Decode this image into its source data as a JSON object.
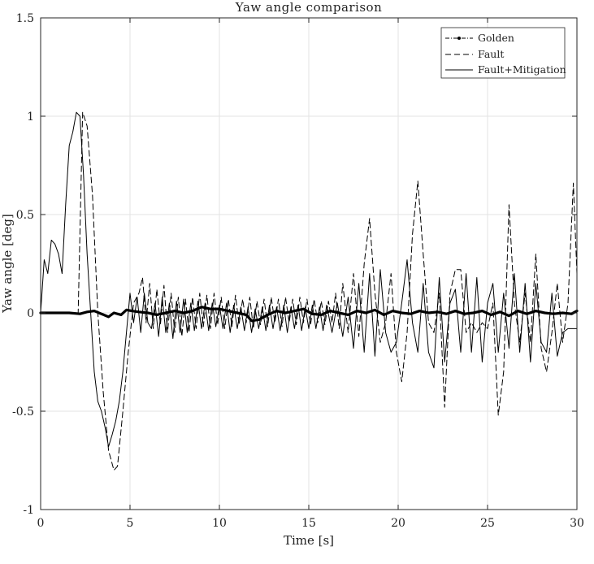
{
  "chart_data": {
    "type": "line",
    "title": "Yaw angle comparison",
    "xlabel": "Time [s]",
    "ylabel": "Yaw angle [deg]",
    "xlim": [
      0,
      30
    ],
    "ylim": [
      -1,
      1.5
    ],
    "xticks": [
      0,
      5,
      10,
      15,
      20,
      25,
      30
    ],
    "xtick_labels": [
      "0",
      "5",
      "10",
      "15",
      "20",
      "25",
      "30"
    ],
    "yticks": [
      -1,
      -0.5,
      0,
      0.5,
      1,
      1.5
    ],
    "ytick_labels": [
      "-1",
      "-0.5",
      "0",
      "0.5",
      "1",
      "1.5"
    ],
    "grid": true,
    "legend_position": "top-right",
    "series": [
      {
        "name": "Golden",
        "style": "dash-dot-marker",
        "color": "#000000",
        "x": [
          0,
          1,
          1.6,
          2.2,
          2.6,
          3.0,
          3.4,
          3.8,
          4.1,
          4.5,
          4.8,
          5.1,
          5.5,
          6.0,
          6.5,
          7.0,
          7.5,
          8.0,
          8.5,
          9.0,
          9.5,
          10.0,
          10.5,
          11.0,
          11.5,
          11.8,
          12.2,
          12.7,
          13.2,
          13.7,
          14.2,
          14.7,
          15.2,
          15.7,
          16.2,
          16.7,
          17.2,
          17.7,
          18.2,
          18.7,
          19.2,
          19.7,
          20.2,
          20.7,
          21.2,
          21.7,
          22.2,
          22.7,
          23.2,
          23.7,
          24.2,
          24.7,
          25.2,
          25.7,
          26.2,
          26.7,
          27.2,
          27.7,
          28.2,
          28.7,
          29.2,
          29.7,
          30.0
        ],
        "y": [
          0,
          0,
          0,
          -0.005,
          0.005,
          0.01,
          -0.005,
          -0.02,
          0.0,
          -0.01,
          0.015,
          0.01,
          0.005,
          0.0,
          -0.01,
          0.0,
          0.01,
          0.0,
          0.01,
          0.03,
          0.02,
          0.02,
          0.01,
          0.0,
          -0.01,
          -0.04,
          -0.035,
          -0.01,
          0.01,
          0.0,
          0.01,
          0.02,
          -0.005,
          -0.01,
          0.01,
          0.0,
          -0.01,
          0.01,
          0.0,
          0.015,
          -0.01,
          0.01,
          0.0,
          -0.005,
          0.01,
          0.0,
          0.005,
          -0.005,
          0.01,
          -0.005,
          0.0,
          0.01,
          -0.01,
          0.005,
          -0.015,
          0.01,
          -0.005,
          0.01,
          0.0,
          -0.005,
          0.0,
          -0.005,
          0.01
        ]
      },
      {
        "name": "Fault",
        "style": "dashed",
        "color": "#000000",
        "x": [
          0,
          0.3,
          0.6,
          0.9,
          1.2,
          1.5,
          1.8,
          2.1,
          2.35,
          2.6,
          2.9,
          3.2,
          3.5,
          3.8,
          4.1,
          4.3,
          4.6,
          4.9,
          5.2,
          5.5,
          5.7,
          5.9,
          6.1,
          6.3,
          6.5,
          6.7,
          6.9,
          7.1,
          7.3,
          7.5,
          7.7,
          7.9,
          8.1,
          8.3,
          8.5,
          8.7,
          8.9,
          9.1,
          9.3,
          9.5,
          9.7,
          9.9,
          10.1,
          10.3,
          10.5,
          10.7,
          10.9,
          11.1,
          11.3,
          11.5,
          11.7,
          11.9,
          12.1,
          12.3,
          12.5,
          12.7,
          12.9,
          13.1,
          13.3,
          13.5,
          13.7,
          13.9,
          14.1,
          14.3,
          14.5,
          14.7,
          14.9,
          15.1,
          15.3,
          15.5,
          15.7,
          15.9,
          16.1,
          16.3,
          16.5,
          16.7,
          16.9,
          17.2,
          17.5,
          17.8,
          18.1,
          18.4,
          18.7,
          19.0,
          19.3,
          19.6,
          19.9,
          20.2,
          20.5,
          20.8,
          21.1,
          21.4,
          21.7,
          22.0,
          22.3,
          22.6,
          22.9,
          23.2,
          23.5,
          23.8,
          24.1,
          24.4,
          24.7,
          25.0,
          25.3,
          25.6,
          25.9,
          26.2,
          26.5,
          26.8,
          27.1,
          27.4,
          27.7,
          28.0,
          28.3,
          28.6,
          28.9,
          29.2,
          29.5,
          29.8,
          30.0
        ],
        "y": [
          0,
          0,
          0,
          0,
          0,
          0,
          0,
          0.0,
          1.02,
          0.95,
          0.6,
          0.0,
          -0.4,
          -0.7,
          -0.8,
          -0.78,
          -0.5,
          -0.2,
          0.05,
          0.1,
          0.18,
          -0.05,
          0.15,
          -0.08,
          0.12,
          -0.06,
          0.14,
          -0.1,
          0.1,
          -0.1,
          0.08,
          -0.12,
          0.07,
          -0.1,
          0.08,
          -0.08,
          0.1,
          -0.07,
          0.09,
          -0.08,
          0.1,
          -0.06,
          0.08,
          -0.08,
          0.07,
          -0.07,
          0.09,
          -0.06,
          0.07,
          -0.05,
          0.08,
          -0.08,
          0.06,
          -0.06,
          0.07,
          -0.07,
          0.08,
          -0.05,
          0.07,
          -0.07,
          0.08,
          -0.05,
          0.07,
          -0.06,
          0.08,
          -0.05,
          0.07,
          -0.06,
          0.07,
          -0.05,
          0.06,
          -0.06,
          0.06,
          -0.05,
          0.1,
          -0.08,
          0.15,
          -0.1,
          0.2,
          -0.12,
          0.25,
          0.48,
          0.1,
          -0.15,
          -0.05,
          0.2,
          -0.2,
          -0.35,
          -0.1,
          0.4,
          0.67,
          0.3,
          -0.05,
          -0.1,
          0.1,
          -0.48,
          0.1,
          0.22,
          0.22,
          -0.1,
          -0.05,
          -0.1,
          -0.05,
          -0.08,
          0.05,
          -0.52,
          -0.3,
          0.55,
          0.05,
          -0.15,
          0.1,
          -0.15,
          0.3,
          -0.18,
          -0.3,
          -0.1,
          0.15,
          -0.15,
          0.05,
          0.66,
          0.2
        ]
      },
      {
        "name": "Fault+Mitigation",
        "style": "solid",
        "color": "#000000",
        "x": [
          0,
          0.2,
          0.4,
          0.6,
          0.8,
          1.0,
          1.2,
          1.4,
          1.6,
          1.8,
          2.0,
          2.2,
          2.4,
          2.6,
          2.8,
          3.0,
          3.2,
          3.4,
          3.6,
          3.8,
          4.0,
          4.2,
          4.4,
          4.6,
          4.8,
          5.0,
          5.2,
          5.4,
          5.6,
          5.8,
          6.0,
          6.2,
          6.4,
          6.6,
          6.8,
          7.0,
          7.2,
          7.4,
          7.6,
          7.8,
          8.0,
          8.2,
          8.4,
          8.6,
          8.8,
          9.0,
          9.2,
          9.4,
          9.6,
          9.8,
          10.0,
          10.2,
          10.4,
          10.6,
          10.8,
          11.0,
          11.2,
          11.4,
          11.6,
          11.8,
          12.0,
          12.2,
          12.4,
          12.6,
          12.8,
          13.0,
          13.2,
          13.4,
          13.6,
          13.8,
          14.0,
          14.2,
          14.4,
          14.6,
          14.8,
          15.0,
          15.2,
          15.4,
          15.6,
          15.8,
          16.0,
          16.3,
          16.6,
          16.9,
          17.2,
          17.5,
          17.8,
          18.1,
          18.4,
          18.7,
          19.0,
          19.3,
          19.6,
          19.9,
          20.2,
          20.5,
          20.8,
          21.1,
          21.4,
          21.7,
          22.0,
          22.3,
          22.6,
          22.9,
          23.2,
          23.5,
          23.8,
          24.1,
          24.4,
          24.7,
          25.0,
          25.3,
          25.6,
          25.9,
          26.2,
          26.5,
          26.8,
          27.1,
          27.4,
          27.7,
          28.0,
          28.3,
          28.6,
          28.9,
          29.2,
          29.5,
          29.8,
          30.0
        ],
        "y": [
          0,
          0.27,
          0.2,
          0.37,
          0.35,
          0.3,
          0.2,
          0.55,
          0.85,
          0.92,
          1.02,
          1.0,
          0.7,
          0.3,
          0.0,
          -0.3,
          -0.45,
          -0.5,
          -0.58,
          -0.68,
          -0.62,
          -0.55,
          -0.45,
          -0.3,
          -0.1,
          0.1,
          -0.05,
          0.08,
          -0.1,
          0.1,
          -0.05,
          -0.08,
          0.05,
          -0.12,
          0.08,
          -0.1,
          0.05,
          -0.13,
          0.06,
          -0.1,
          0.07,
          -0.1,
          0.05,
          -0.09,
          0.06,
          -0.08,
          0.05,
          -0.09,
          0.05,
          -0.07,
          0.04,
          -0.08,
          0.05,
          -0.1,
          0.04,
          -0.08,
          0.03,
          -0.09,
          0.03,
          -0.1,
          0.02,
          -0.08,
          0.03,
          -0.09,
          0.04,
          -0.08,
          0.03,
          -0.09,
          0.04,
          -0.1,
          0.03,
          -0.08,
          0.04,
          -0.09,
          0.03,
          -0.08,
          0.04,
          -0.08,
          0.03,
          -0.09,
          0.04,
          -0.1,
          0.05,
          -0.12,
          0.08,
          -0.18,
          0.15,
          -0.2,
          0.2,
          -0.22,
          0.22,
          -0.1,
          -0.2,
          -0.15,
          0.05,
          0.27,
          -0.05,
          -0.2,
          0.15,
          -0.2,
          -0.28,
          0.18,
          -0.25,
          0.05,
          0.12,
          -0.2,
          0.2,
          -0.2,
          0.18,
          -0.25,
          0.05,
          0.15,
          -0.2,
          0.1,
          -0.18,
          0.2,
          -0.2,
          0.15,
          -0.25,
          0.15,
          -0.15,
          -0.2,
          0.1,
          -0.22,
          -0.1,
          -0.08,
          -0.08,
          -0.08
        ]
      }
    ]
  }
}
